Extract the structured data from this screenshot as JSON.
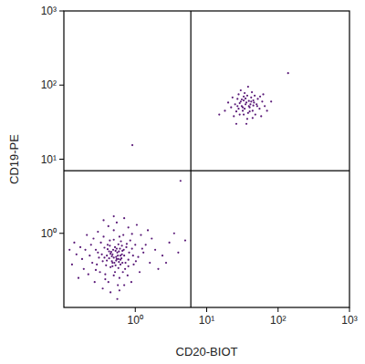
{
  "chart_data": {
    "type": "scatter",
    "x_label": "CD20-BIOT",
    "y_label": "CD19-PE",
    "log": true,
    "color": "#5a1a78",
    "marker": "dot",
    "xlim": [
      0.1,
      1000
    ],
    "ylim": [
      0.1,
      1000
    ],
    "xticks": [
      {
        "value": 1,
        "label": "10⁰"
      },
      {
        "value": 10,
        "label": "10¹"
      },
      {
        "value": 100,
        "label": "10²"
      },
      {
        "value": 1000,
        "label": "10³"
      }
    ],
    "yticks": [
      {
        "value": 1,
        "label": "10⁰"
      },
      {
        "value": 10,
        "label": "10¹"
      },
      {
        "value": 100,
        "label": "10²"
      },
      {
        "value": 1000,
        "label": "10³"
      }
    ],
    "quadrant_gates": {
      "x": 6,
      "y": 7
    },
    "x": [
      0.55,
      0.48,
      0.62,
      0.41,
      0.7,
      0.35,
      0.58,
      0.52,
      0.8,
      0.45,
      0.66,
      0.3,
      0.9,
      0.5,
      0.38,
      0.72,
      0.6,
      0.25,
      1.1,
      0.44,
      0.33,
      0.85,
      0.56,
      0.47,
      0.64,
      0.53,
      0.4,
      0.75,
      0.28,
      0.95,
      0.2,
      1.3,
      0.5,
      0.68,
      0.42,
      0.57,
      0.36,
      0.78,
      1.0,
      0.22,
      0.31,
      0.61,
      0.49,
      0.54,
      0.46,
      0.59,
      0.43,
      0.65,
      0.51,
      0.39,
      0.18,
      0.15,
      0.13,
      0.24,
      0.27,
      1.6,
      1.9,
      2.4,
      3.0,
      2.1,
      1.2,
      0.8,
      0.55,
      0.42,
      0.3,
      0.7,
      1.05,
      0.6,
      0.45,
      0.35,
      0.88,
      1.15,
      1.4,
      0.26,
      0.19,
      0.16,
      0.12,
      0.14,
      0.21,
      0.5,
      0.73,
      0.82,
      0.37,
      0.29,
      0.63,
      0.52,
      0.44,
      0.67,
      0.58,
      0.34,
      0.93,
      1.02,
      0.76,
      0.4,
      0.48,
      0.57,
      0.62,
      0.53,
      0.47,
      0.69,
      0.32,
      0.38,
      0.8,
      1.25,
      1.7,
      0.23,
      0.17,
      0.28,
      0.6,
      0.9,
      0.36,
      0.5,
      1.5,
      2.7,
      4.0,
      0.56,
      0.7,
      0.41,
      0.65,
      0.55,
      0.45,
      0.59,
      0.5,
      0.62,
      0.48,
      0.43,
      0.54,
      0.66,
      0.37,
      0.58,
      5.0,
      3.5,
      0.91,
      4.3,
      35,
      30,
      40,
      28,
      45,
      33,
      38,
      25,
      50,
      32,
      42,
      27,
      36,
      31,
      39,
      22,
      55,
      47,
      29,
      34,
      44,
      37,
      26,
      52,
      20,
      60,
      41,
      33,
      24,
      48,
      18,
      65,
      30,
      43,
      36,
      28,
      56,
      70,
      15,
      38,
      46,
      32,
      40,
      35,
      29,
      51,
      23,
      44,
      58,
      80,
      26,
      62,
      34,
      39,
      31,
      45,
      37,
      27,
      42,
      33,
      138
    ],
    "values": [
      0.45,
      0.52,
      0.38,
      0.61,
      0.5,
      0.42,
      0.71,
      0.3,
      0.44,
      0.35,
      0.58,
      0.55,
      0.62,
      0.82,
      0.28,
      0.33,
      0.25,
      0.4,
      0.48,
      0.68,
      0.75,
      0.8,
      0.55,
      0.42,
      0.46,
      0.37,
      0.5,
      0.65,
      0.32,
      0.38,
      0.6,
      0.55,
      1.1,
      0.95,
      0.22,
      0.2,
      0.9,
      0.27,
      0.7,
      0.28,
      0.47,
      0.62,
      0.6,
      0.48,
      0.56,
      0.41,
      0.46,
      0.52,
      0.4,
      0.37,
      0.45,
      0.52,
      0.38,
      0.7,
      0.22,
      0.4,
      0.6,
      0.5,
      0.75,
      0.33,
      0.95,
      1.2,
      1.4,
      1.25,
      1.05,
      1.6,
      1.3,
      0.17,
      0.16,
      0.18,
      0.22,
      0.3,
      0.7,
      0.85,
      0.33,
      0.25,
      0.6,
      0.75,
      0.95,
      0.27,
      0.4,
      0.55,
      0.64,
      0.38,
      0.78,
      0.65,
      0.8,
      0.3,
      0.34,
      0.52,
      0.5,
      0.42,
      0.72,
      0.43,
      0.36,
      0.5,
      0.44,
      0.58,
      0.49,
      0.6,
      0.3,
      0.24,
      0.36,
      0.62,
      0.85,
      0.5,
      0.65,
      0.6,
      0.9,
      0.98,
      1.5,
      1.7,
      1.1,
      0.4,
      0.55,
      0.13,
      0.2,
      0.7,
      0.68,
      0.62,
      0.53,
      0.57,
      0.47,
      0.5,
      0.4,
      0.57,
      0.43,
      0.4,
      0.47,
      0.45,
      0.8,
      1.0,
      15.5,
      5.1,
      55,
      60,
      50,
      48,
      62,
      70,
      42,
      55,
      55,
      45,
      68,
      65,
      58,
      52,
      61,
      50,
      48,
      72,
      40,
      78,
      45,
      35,
      44,
      65,
      58,
      60,
      55,
      62,
      38,
      40,
      45,
      52,
      85,
      80,
      30,
      75,
      70,
      45,
      40,
      95,
      58,
      50,
      44,
      66,
      57,
      52,
      68,
      36,
      38,
      60,
      30,
      75,
      48,
      52,
      64,
      53,
      72,
      52,
      60,
      40,
      145
    ]
  }
}
